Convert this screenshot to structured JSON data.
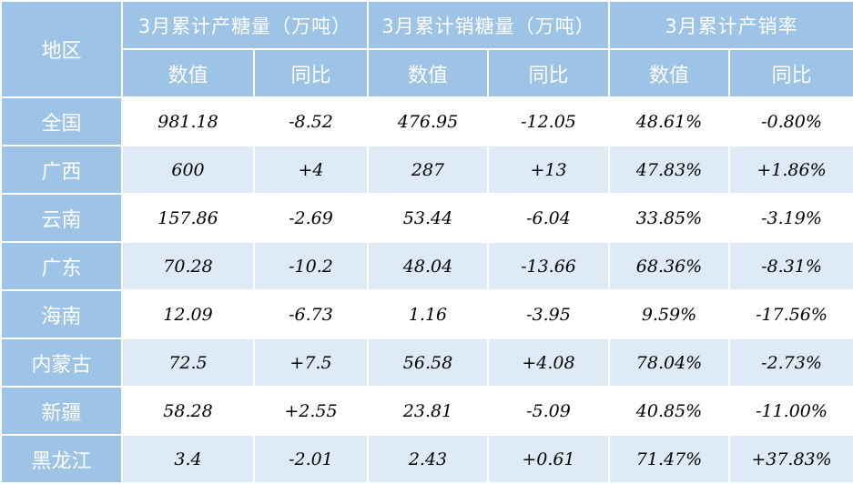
{
  "table": {
    "corner": "地区",
    "groups": [
      "3月累计产糖量（万吨）",
      "3月累计销糖量（万吨）",
      "3月累计产销率"
    ],
    "subheaders": [
      "数值",
      "同比",
      "数值",
      "同比",
      "数值",
      "同比"
    ],
    "rows": [
      [
        "全国",
        "981.18",
        "-8.52",
        "476.95",
        "-12.05",
        "48.61%",
        "-0.80%"
      ],
      [
        "广西",
        "600",
        "+4",
        "287",
        "+13",
        "47.83%",
        "+1.86%"
      ],
      [
        "云南",
        "157.86",
        "-2.69",
        "53.44",
        "-6.04",
        "33.85%",
        "-3.19%"
      ],
      [
        "广东",
        "70.28",
        "-10.2",
        "48.04",
        "-13.66",
        "68.36%",
        "-8.31%"
      ],
      [
        "海南",
        "12.09",
        "-6.73",
        "1.16",
        "-3.95",
        "9.59%",
        "-17.56%"
      ],
      [
        "内蒙古",
        "72.5",
        "+7.5",
        "56.58",
        "+4.08",
        "78.04%",
        "-2.73%"
      ],
      [
        "新疆",
        "58.28",
        "+2.55",
        "23.81",
        "-5.09",
        "40.85%",
        "-11.00%"
      ],
      [
        "黑龙江",
        "3.4",
        "-2.01",
        "2.43",
        "+0.61",
        "71.47%",
        "+37.83%"
      ]
    ]
  }
}
